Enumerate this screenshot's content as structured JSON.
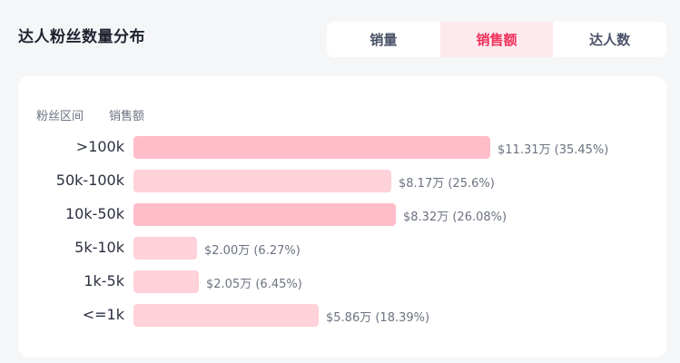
{
  "header": {
    "title": "达人粉丝数量分布"
  },
  "tabs": [
    {
      "label": "销量",
      "active": false
    },
    {
      "label": "销售额",
      "active": true
    },
    {
      "label": "达人数",
      "active": false
    }
  ],
  "colors": {
    "accent": "#f0305a",
    "bar": "#ffd1d8",
    "bar_highlight": "#ffbcc9"
  },
  "chart_data": {
    "type": "bar",
    "orientation": "horizontal",
    "column_headers": [
      "粉丝区间",
      "销售额"
    ],
    "categories": [
      ">100k",
      "50k-100k",
      "10k-50k",
      "5k-10k",
      "1k-5k",
      "<=1k"
    ],
    "values": [
      35.45,
      25.6,
      26.08,
      6.27,
      6.45,
      18.39
    ],
    "labels": [
      "$11.31万 (35.45%)",
      "$8.17万 (25.6%)",
      "$8.32万 (26.08%)",
      "$2.00万 (6.27%)",
      "$2.05万 (6.45%)",
      "$5.86万 (18.39%)"
    ],
    "highlighted": [
      true,
      false,
      true,
      false,
      false,
      false
    ]
  }
}
